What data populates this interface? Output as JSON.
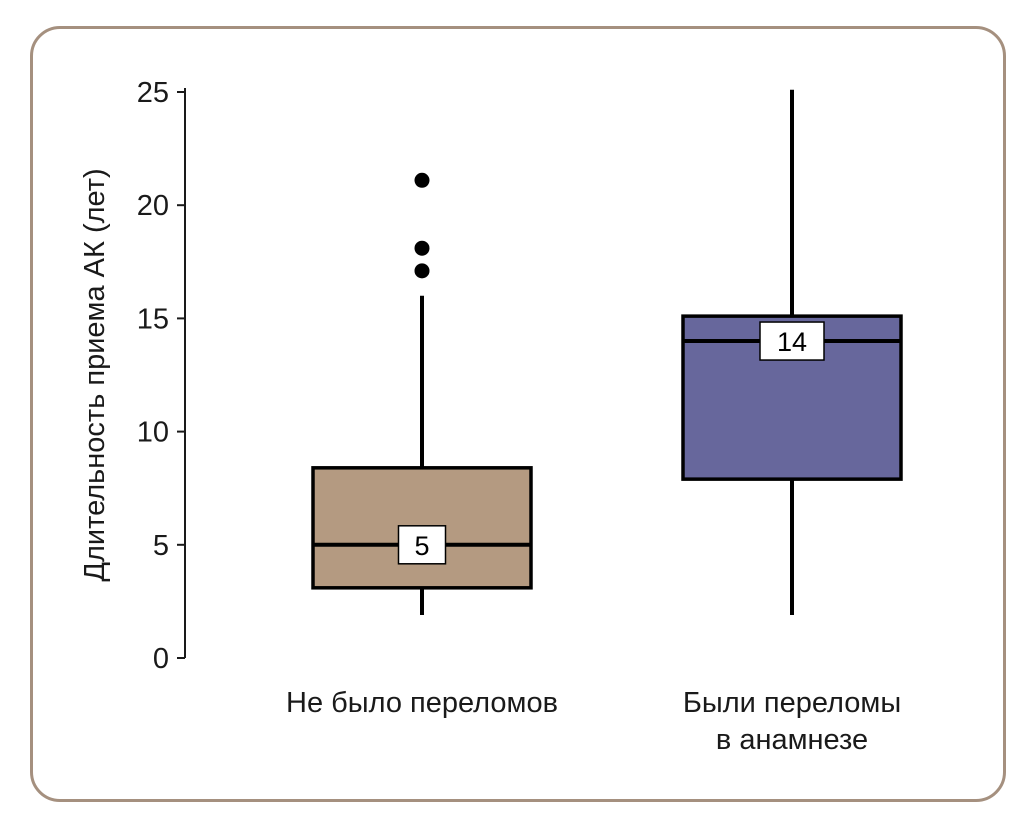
{
  "frame": {
    "border_color": "#a5907f",
    "background": "#ffffff"
  },
  "chart_data": {
    "type": "boxplot",
    "title": "",
    "ylabel": "Длительность приема АК (лет)",
    "xlabel": "",
    "ylim": [
      0,
      25
    ],
    "yticks": [
      0,
      5,
      10,
      15,
      20,
      25
    ],
    "grid": false,
    "legend": false,
    "categories": [
      "Не было переломов",
      "Были переломы\nв анамнезе"
    ],
    "series": [
      {
        "name": "Не было переломов",
        "color": "#b49a81",
        "whisker_low": 1.9,
        "q1": 3.1,
        "median": 5,
        "median_label": "5",
        "q3": 8.4,
        "whisker_high": 16.0,
        "outliers": [
          17.1,
          18.1,
          21.1
        ]
      },
      {
        "name": "Были переломы в анамнезе",
        "color": "#67679c",
        "whisker_low": 1.9,
        "q1": 7.9,
        "median": 14,
        "median_label": "14",
        "q3": 15.1,
        "whisker_high": 25.1,
        "outliers": []
      }
    ]
  }
}
